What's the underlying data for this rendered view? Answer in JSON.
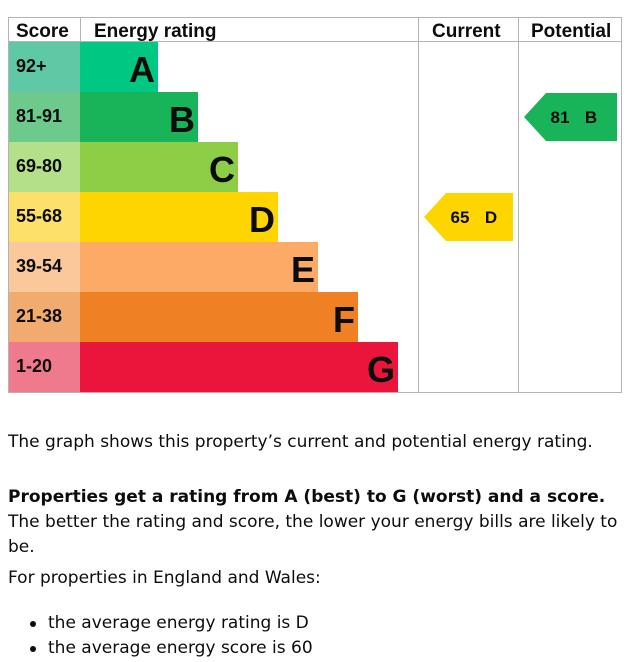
{
  "chart_data": {
    "type": "table",
    "headers": {
      "score": "Score",
      "rating": "Energy rating",
      "current": "Current",
      "potential": "Potential"
    },
    "bands": [
      {
        "range": "92+",
        "letter": "A",
        "color": "#00c781",
        "score_color": "#5fc8a4"
      },
      {
        "range": "81-91",
        "letter": "B",
        "color": "#19b459",
        "score_color": "#6ec98d"
      },
      {
        "range": "69-80",
        "letter": "C",
        "color": "#8dce46",
        "score_color": "#b5e08a"
      },
      {
        "range": "55-68",
        "letter": "D",
        "color": "#ffd500",
        "score_color": "#fde06a"
      },
      {
        "range": "39-54",
        "letter": "E",
        "color": "#fcaa65",
        "score_color": "#fbc89c"
      },
      {
        "range": "21-38",
        "letter": "F",
        "color": "#ef8023",
        "score_color": "#f2ab6e"
      },
      {
        "range": "1-20",
        "letter": "G",
        "color": "#e9153b",
        "score_color": "#ef7a8e"
      }
    ],
    "current": {
      "score": "65",
      "letter": "D",
      "band_index": 3,
      "color": "#ffd500"
    },
    "potential": {
      "score": "81",
      "letter": "B",
      "band_index": 1,
      "color": "#19b459"
    }
  },
  "text": {
    "intro": "The graph shows this property’s current and potential energy rating.",
    "bold_part": "Properties get a rating from A (best) to G (worst) and a score.",
    "rest_part": " The better the rating and score, the lower your energy bills are likely to be.",
    "regions": "For properties in England and Wales:",
    "bullets": [
      "the average energy rating is D",
      "the average energy score is 60"
    ]
  }
}
